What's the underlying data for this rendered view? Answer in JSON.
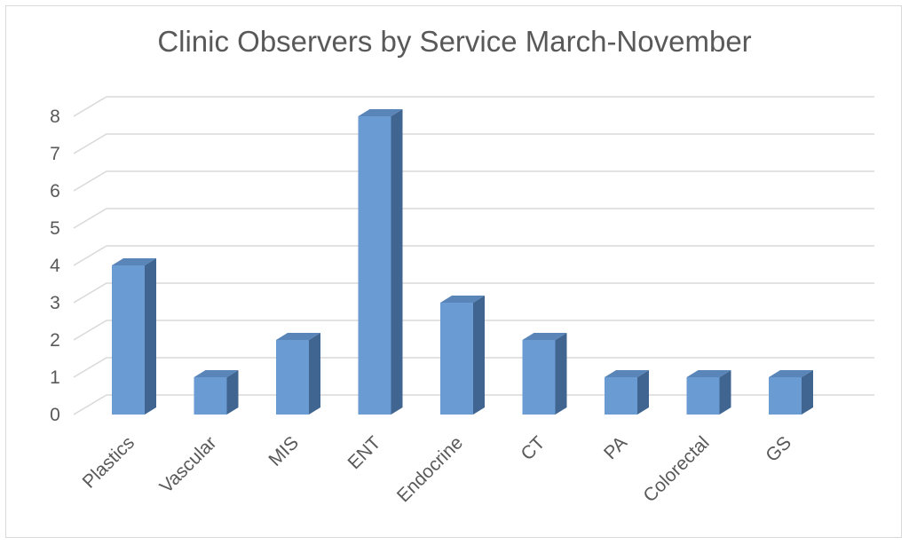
{
  "chart_data": {
    "type": "bar",
    "title": "Clinic Observers by Service March-November",
    "categories": [
      "Plastics",
      "Vascular",
      "MIS",
      "ENT",
      "Endocrine",
      "CT",
      "PA",
      "Colorectal",
      "GS"
    ],
    "values": [
      4,
      1,
      2,
      8,
      3,
      2,
      1,
      1,
      1
    ],
    "yticks": [
      "0",
      "1",
      "2",
      "3",
      "4",
      "5",
      "6",
      "7",
      "8"
    ],
    "ylim": [
      0,
      8
    ],
    "grid": true,
    "style": "3d-column",
    "colors": {
      "bar_front": "#6a9bd2",
      "bar_side": "#3f6590",
      "bar_top": "#5a85b8",
      "grid": "#d9d9d9",
      "text": "#595959"
    }
  }
}
